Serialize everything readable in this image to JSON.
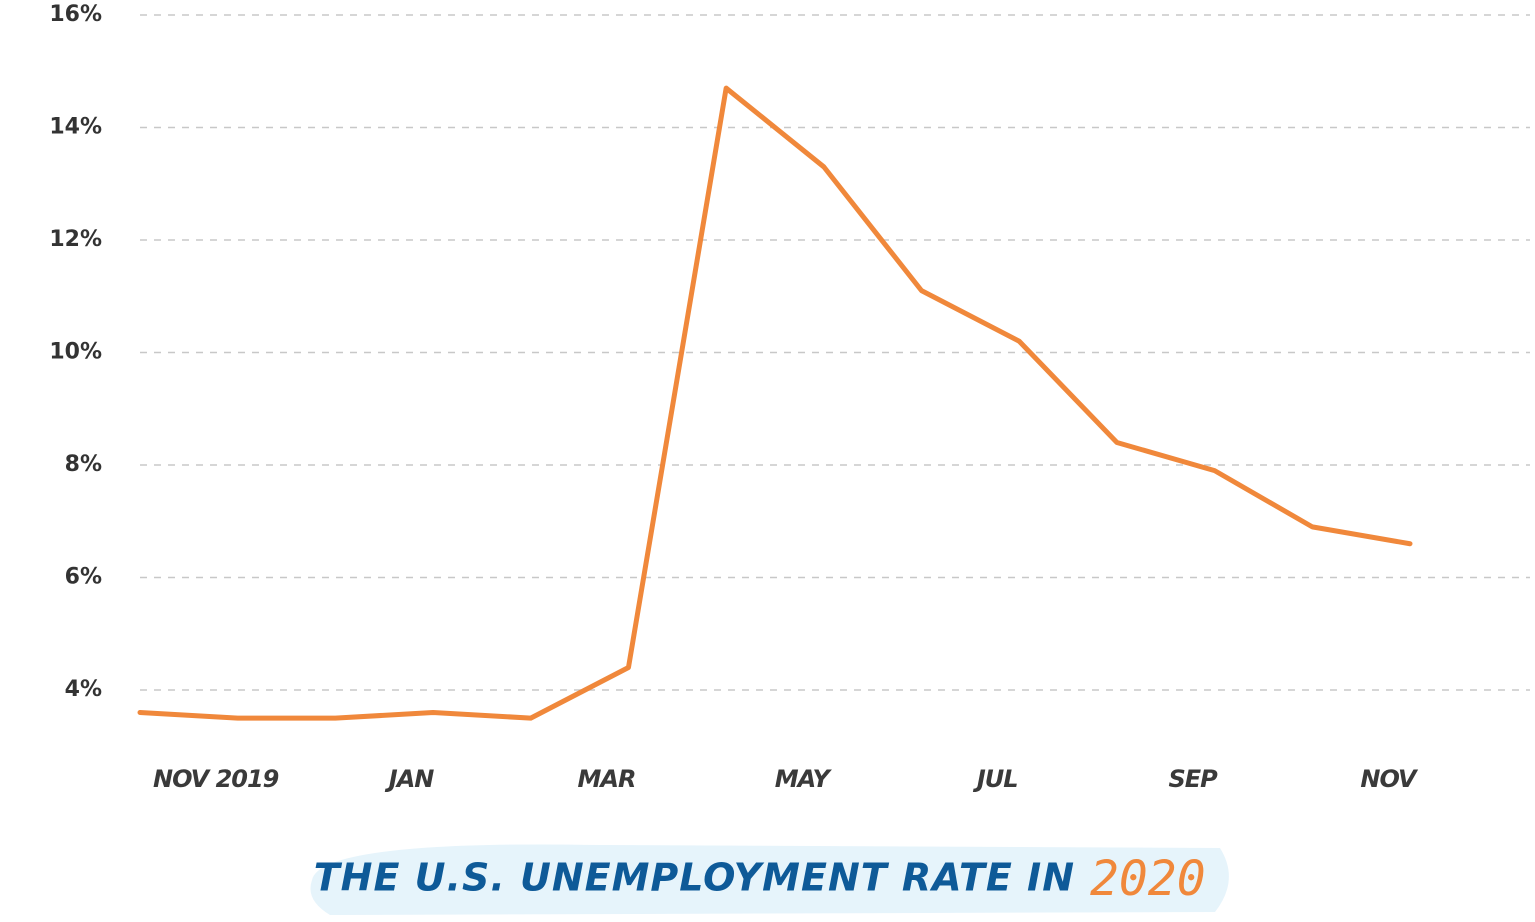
{
  "chart_data": {
    "type": "line",
    "title": "THE U.S. UNEMPLOYMENT RATE IN",
    "title_highlight": "2020",
    "categories": [
      null,
      "NOV 2019",
      null,
      "JAN",
      null,
      "MAR",
      null,
      "MAY",
      null,
      "JUL",
      null,
      "SEP",
      null,
      "NOV"
    ],
    "series": [
      {
        "name": "Unemployment rate",
        "color": "#f0883b",
        "values": [
          3.6,
          3.5,
          3.5,
          3.6,
          3.5,
          4.4,
          14.7,
          13.3,
          11.1,
          10.2,
          8.4,
          7.9,
          6.9,
          6.6
        ]
      }
    ],
    "ylim": [
      3.2,
      16
    ],
    "yticks": [
      {
        "value": 4,
        "label": "4%"
      },
      {
        "value": 6,
        "label": "6%"
      },
      {
        "value": 8,
        "label": "8%"
      },
      {
        "value": 10,
        "label": "10%"
      },
      {
        "value": 12,
        "label": "12%"
      },
      {
        "value": 14,
        "label": "14%"
      },
      {
        "value": 16,
        "label": "16%"
      }
    ],
    "grid": true
  }
}
